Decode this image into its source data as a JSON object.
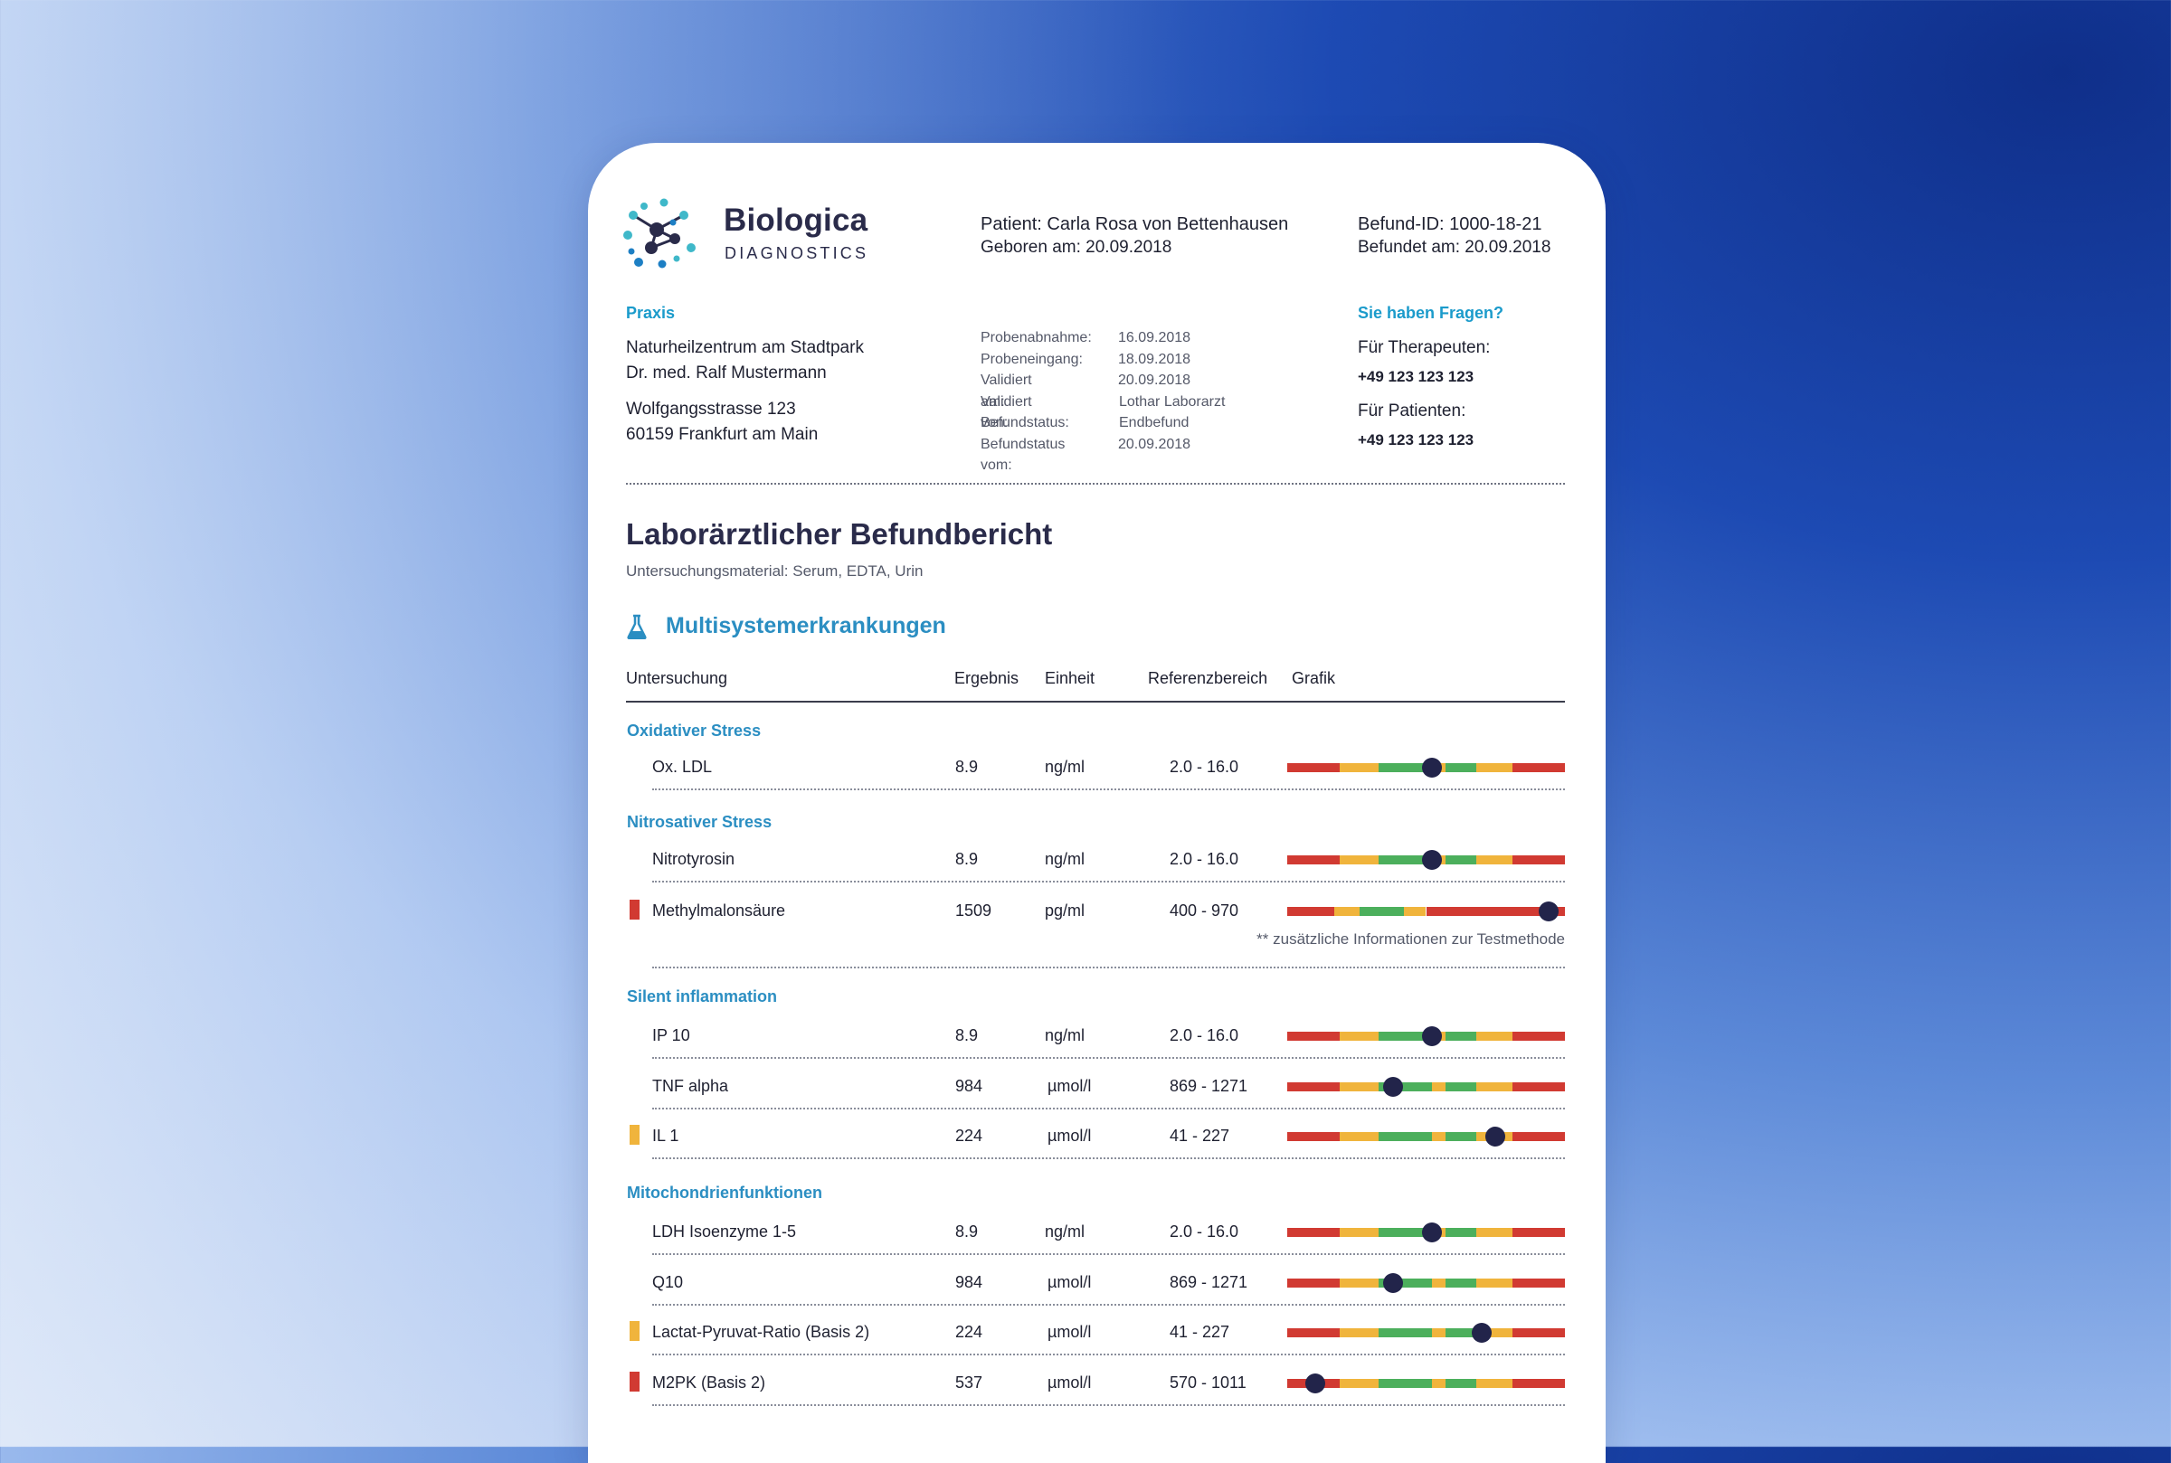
{
  "brand": {
    "name": "Biologica",
    "sub": "DIAGNOSTICS",
    "logo_icon": "molecule-logo-icon"
  },
  "patient": {
    "name_line": "Patient: Carla Rosa von Bettenhausen",
    "born_line": "Geboren am: 20.09.2018"
  },
  "report": {
    "id_line": "Befund-ID: 1000-18-21",
    "date_line": "Befundet am: 20.09.2018"
  },
  "practice": {
    "label": "Praxis",
    "lines": [
      "Naturheilzentrum am Stadtpark",
      "Dr. med. Ralf Mustermann"
    ],
    "address": [
      "Wolfgangsstrasse 123",
      "60159 Frankfurt am Main"
    ]
  },
  "meta": [
    {
      "key": "Probenabnahme:",
      "value": "16.09.2018"
    },
    {
      "key": "Probeneingang:",
      "value": "18.09.2018"
    },
    {
      "key": "Validiert am:",
      "value": "20.09.2018"
    },
    {
      "key": "Validiert von:",
      "value": "Lothar Laborarzt"
    },
    {
      "key": "Befundstatus:",
      "value": "Endbefund"
    },
    {
      "key": "Befundstatus vom:",
      "value": "20.09.2018"
    }
  ],
  "contact": {
    "label": "Sie haben Fragen?",
    "therapists_label": "Für Therapeuten:",
    "therapists_phone": "+49 123 123 123",
    "patients_label": "Für Patienten:",
    "patients_phone": "+49 123 123 123"
  },
  "title": "Laborärztlicher Befundbericht",
  "subtitle": "Untersuchungsmaterial: Serum, EDTA, Urin",
  "section": {
    "title": "Multisystemerkrankungen",
    "icon": "flask-icon"
  },
  "columns": [
    "Untersuchung",
    "Ergebnis",
    "Einheit",
    "Referenzbereich",
    "Grafik"
  ],
  "colors": {
    "red": "#d13a32",
    "yellow": "#f0b43c",
    "green": "#4caf5c",
    "marker": "#22244a",
    "accent": "#2b8ec2"
  },
  "groups": [
    {
      "title": "Oxidativer Stress",
      "rows": [
        {
          "name": "Ox. LDL",
          "result": "8.9",
          "unit": "ng/ml",
          "ref": "2.0 - 16.0",
          "flag": null,
          "scale": "normal",
          "marker": 0.52
        }
      ]
    },
    {
      "title": "Nitrosativer Stress",
      "rows": [
        {
          "name": "Nitrotyrosin",
          "result": "8.9",
          "unit": "ng/ml",
          "ref": "2.0 - 16.0",
          "flag": null,
          "scale": "normal",
          "marker": 0.52
        },
        {
          "name": "Methylmalonsäure",
          "result": "1509",
          "unit": "pg/ml",
          "ref": "400 - 970",
          "flag": "red",
          "scale": "high",
          "marker": 0.94,
          "note": "** zusätzliche Informationen zur Testmethode"
        }
      ]
    },
    {
      "title": "Silent inflammation",
      "rows": [
        {
          "name": "IP 10",
          "result": "8.9",
          "unit": "ng/ml",
          "ref": "2.0 - 16.0",
          "flag": null,
          "scale": "normal",
          "marker": 0.52
        },
        {
          "name": "TNF alpha",
          "result": "984",
          "unit": "µmol/l",
          "ref": "869 - 1271",
          "flag": null,
          "scale": "normal",
          "marker": 0.38
        },
        {
          "name": "IL 1",
          "result": "224",
          "unit": "µmol/l",
          "ref": "41 - 227",
          "flag": "yellow",
          "scale": "normal",
          "marker": 0.75
        }
      ]
    },
    {
      "title": "Mitochondrienfunktionen",
      "rows": [
        {
          "name": "LDH Isoenzyme 1-5",
          "result": "8.9",
          "unit": "ng/ml",
          "ref": "2.0 - 16.0",
          "flag": null,
          "scale": "normal",
          "marker": 0.52
        },
        {
          "name": "Q10",
          "result": "984",
          "unit": "µmol/l",
          "ref": "869 - 1271",
          "flag": null,
          "scale": "normal",
          "marker": 0.38
        },
        {
          "name": "Lactat-Pyruvat-Ratio (Basis 2)",
          "result": "224",
          "unit": "µmol/l",
          "ref": "41 - 227",
          "flag": "yellow",
          "scale": "normal",
          "marker": 0.7
        },
        {
          "name": "M2PK (Basis 2)",
          "result": "537",
          "unit": "µmol/l",
          "ref": "570 - 1011",
          "flag": "red",
          "scale": "normal",
          "marker": 0.1
        }
      ]
    }
  ]
}
